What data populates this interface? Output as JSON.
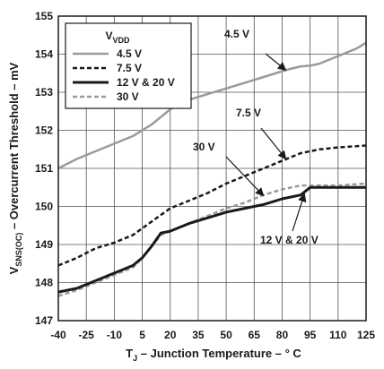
{
  "chart_data": {
    "type": "line",
    "xlabel_main": "T",
    "xlabel_sub": "J",
    "xlabel_rest": " – Junction Temperature – ° C",
    "ylabel_main": "V",
    "ylabel_sub": "SNS(OC)",
    "ylabel_rest": " – Overcurrent Threshold – mV",
    "xlim": [
      -40,
      125
    ],
    "ylim": [
      147,
      155
    ],
    "x_ticks": [
      -40,
      -25,
      -10,
      5,
      20,
      35,
      50,
      65,
      80,
      95,
      110,
      125
    ],
    "y_ticks": [
      147,
      148,
      149,
      150,
      151,
      152,
      153,
      154,
      155
    ],
    "grid": true,
    "legend": {
      "title_main": "V",
      "title_sub": "VDD",
      "placement": "top-left"
    },
    "series": [
      {
        "name": "4.5 V",
        "color": "#9a9a9a",
        "style": "solid",
        "x": [
          -40,
          -30,
          -20,
          -10,
          0,
          10,
          20,
          30,
          40,
          50,
          60,
          70,
          80,
          85,
          90,
          95,
          100,
          110,
          120,
          125
        ],
        "y": [
          151.0,
          151.25,
          151.45,
          151.65,
          151.85,
          152.15,
          152.55,
          152.8,
          152.95,
          153.1,
          153.25,
          153.4,
          153.55,
          153.62,
          153.68,
          153.7,
          153.75,
          153.95,
          154.15,
          154.3
        ]
      },
      {
        "name": "7.5 V",
        "color": "#1a1a1a",
        "style": "dashed",
        "x": [
          -40,
          -30,
          -20,
          -10,
          0,
          10,
          20,
          30,
          40,
          50,
          60,
          70,
          80,
          90,
          100,
          110,
          125
        ],
        "y": [
          148.45,
          148.65,
          148.9,
          149.05,
          149.25,
          149.6,
          149.95,
          150.15,
          150.35,
          150.6,
          150.8,
          151.0,
          151.2,
          151.4,
          151.5,
          151.55,
          151.6
        ]
      },
      {
        "name": "12 V & 20 V",
        "color": "#1a1a1a",
        "style": "solid",
        "x": [
          -40,
          -30,
          -20,
          -10,
          0,
          5,
          10,
          15,
          20,
          30,
          40,
          50,
          60,
          70,
          80,
          90,
          95,
          100,
          110,
          125
        ],
        "y": [
          147.75,
          147.85,
          148.05,
          148.25,
          148.45,
          148.65,
          148.95,
          149.3,
          149.35,
          149.55,
          149.7,
          149.85,
          149.95,
          150.05,
          150.2,
          150.3,
          150.5,
          150.5,
          150.5,
          150.5
        ]
      },
      {
        "name": "30 V",
        "color": "#9a9a9a",
        "style": "dashed",
        "x": [
          -40,
          -30,
          -20,
          -10,
          0,
          5,
          10,
          15,
          20,
          30,
          40,
          50,
          60,
          70,
          80,
          90,
          100,
          110,
          125
        ],
        "y": [
          147.65,
          147.8,
          148.0,
          148.2,
          148.4,
          148.65,
          148.95,
          149.25,
          149.35,
          149.55,
          149.75,
          149.95,
          150.1,
          150.3,
          150.45,
          150.55,
          150.55,
          150.55,
          150.6
        ]
      }
    ],
    "annotations": [
      {
        "text": "4.5 V",
        "target_x": 82,
        "target_y": 153.58
      },
      {
        "text": "7.5 V",
        "target_x": 82,
        "target_y": 151.25
      },
      {
        "text": "30 V",
        "target_x": 70,
        "target_y": 150.28
      },
      {
        "text": "12 V & 20 V",
        "target_x": 92,
        "target_y": 150.33
      }
    ]
  }
}
